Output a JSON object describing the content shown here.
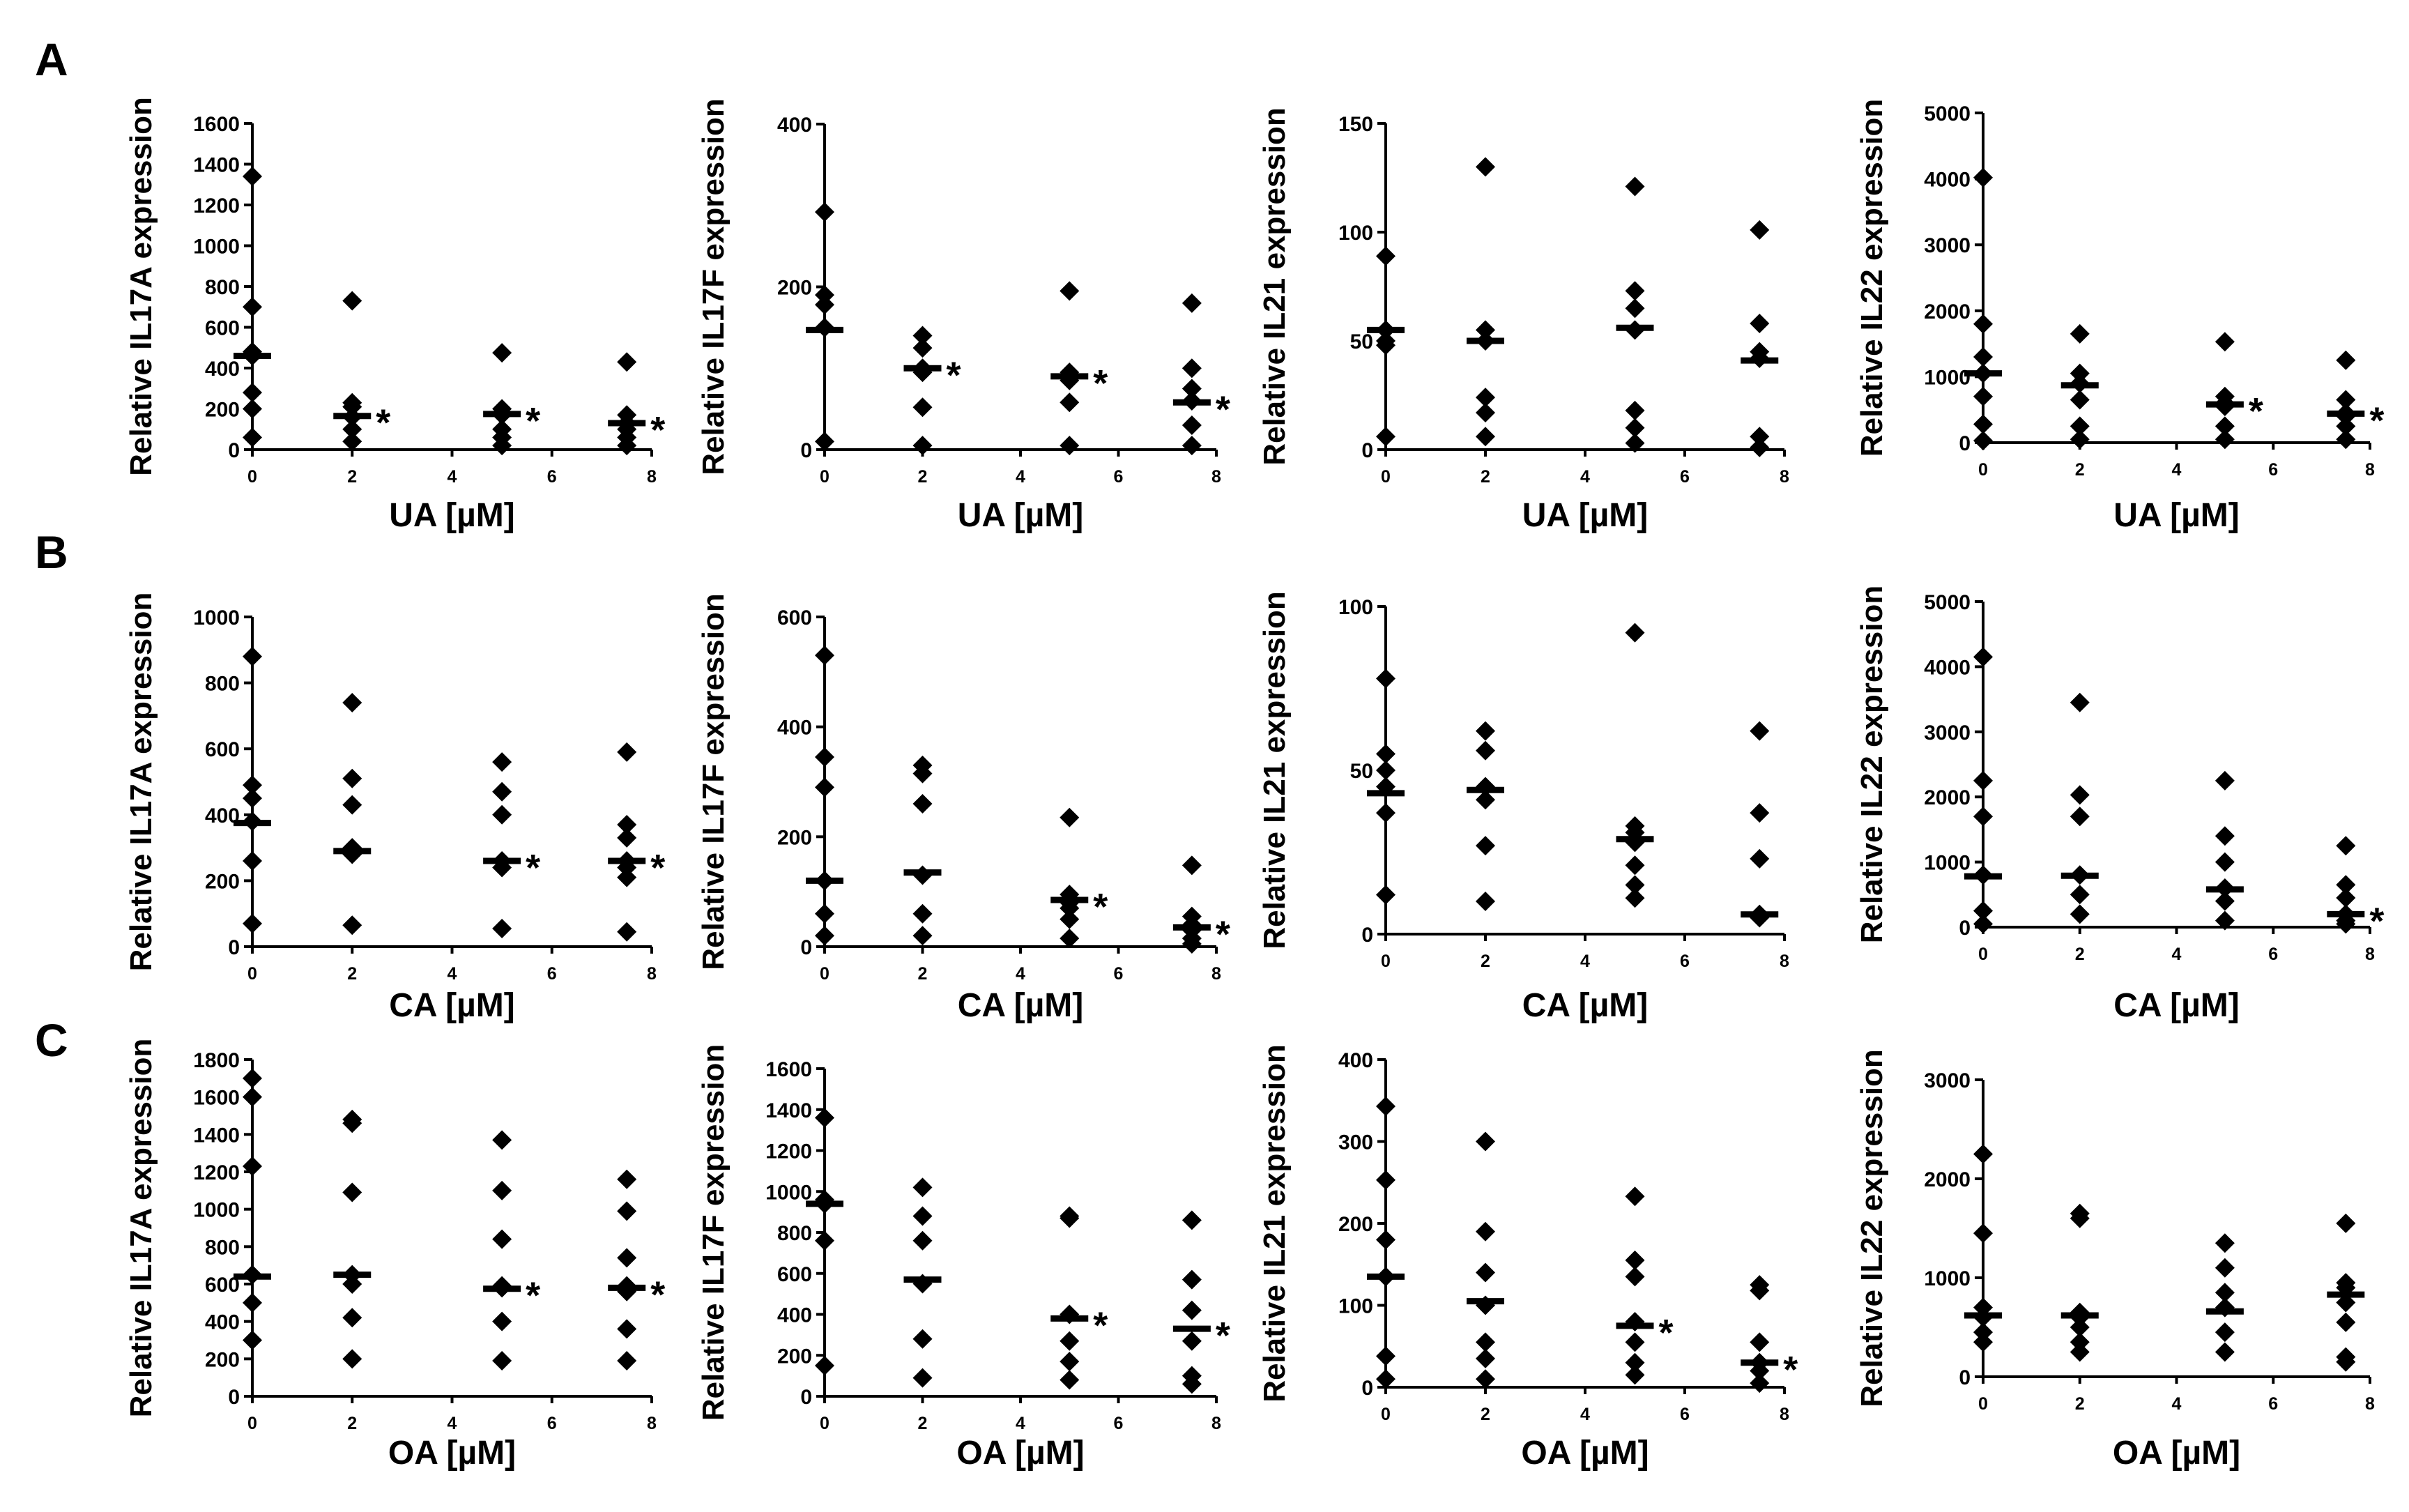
{
  "panel_letters": [
    "A",
    "B",
    "C"
  ],
  "chart_data": [
    {
      "id": "A-IL17A",
      "type": "scatter",
      "panel": "A",
      "title": "",
      "ylabel": "Relative IL17A expression",
      "xlabel": "UA [µM]",
      "ylim": [
        0,
        1600
      ],
      "yticks": [
        0,
        200,
        400,
        600,
        800,
        1000,
        1200,
        1400,
        1600
      ],
      "xlim": [
        0,
        8
      ],
      "xticks": [
        0,
        2,
        4,
        6,
        8
      ],
      "groups": [
        {
          "x": 0,
          "points": [
            1340,
            700,
            480,
            460,
            280,
            200,
            60
          ],
          "median": 460,
          "star": false
        },
        {
          "x": 2,
          "points": [
            730,
            230,
            210,
            160,
            100,
            40
          ],
          "median": 165,
          "star": true
        },
        {
          "x": 5,
          "points": [
            475,
            200,
            170,
            100,
            60,
            20
          ],
          "median": 175,
          "star": true
        },
        {
          "x": 7.5,
          "points": [
            430,
            170,
            130,
            100,
            60,
            20
          ],
          "median": 130,
          "star": true
        }
      ]
    },
    {
      "id": "A-IL17F",
      "type": "scatter",
      "panel": "A",
      "title": "",
      "ylabel": "Relative IL17F expression",
      "xlabel": "UA [µM]",
      "ylim": [
        0,
        400
      ],
      "yticks": [
        0,
        200,
        400
      ],
      "xlim": [
        0,
        8
      ],
      "xticks": [
        0,
        2,
        4,
        6,
        8
      ],
      "groups": [
        {
          "x": 0,
          "points": [
            292,
            190,
            178,
            150,
            10
          ],
          "median": 147,
          "star": false
        },
        {
          "x": 2,
          "points": [
            140,
            125,
            100,
            95,
            52,
            5
          ],
          "median": 100,
          "star": true
        },
        {
          "x": 5,
          "points": [
            195,
            95,
            90,
            85,
            58,
            5
          ],
          "median": 90,
          "star": true
        },
        {
          "x": 7.5,
          "points": [
            180,
            100,
            75,
            60,
            30,
            5
          ],
          "median": 58,
          "star": true
        }
      ]
    },
    {
      "id": "A-IL21",
      "type": "scatter",
      "panel": "A",
      "title": "",
      "ylabel": "Relative IL21 expression",
      "xlabel": "UA [µM]",
      "ylim": [
        0,
        150
      ],
      "yticks": [
        0,
        50,
        100,
        150
      ],
      "xlim": [
        0,
        8
      ],
      "xticks": [
        0,
        2,
        4,
        6,
        8
      ],
      "groups": [
        {
          "x": 0,
          "points": [
            89,
            55,
            50,
            48,
            6
          ],
          "median": 55,
          "star": false
        },
        {
          "x": 2,
          "points": [
            130,
            55,
            50,
            24,
            17,
            6
          ],
          "median": 50,
          "star": false
        },
        {
          "x": 5,
          "points": [
            121,
            73,
            65,
            55,
            18,
            10,
            3
          ],
          "median": 56,
          "star": false
        },
        {
          "x": 7.5,
          "points": [
            101,
            58,
            45,
            42,
            6,
            1
          ],
          "median": 41,
          "star": false
        }
      ]
    },
    {
      "id": "A-IL22",
      "type": "scatter",
      "panel": "A",
      "title": "",
      "ylabel": "Relative IL22 expression",
      "xlabel": "UA [µM]",
      "ylim": [
        0,
        5000
      ],
      "yticks": [
        0,
        1000,
        2000,
        3000,
        4000,
        5000
      ],
      "xlim": [
        0,
        8
      ],
      "xticks": [
        0,
        2,
        4,
        6,
        8
      ],
      "groups": [
        {
          "x": 0,
          "points": [
            4020,
            1800,
            1300,
            1050,
            700,
            280,
            30
          ],
          "median": 1050,
          "star": false
        },
        {
          "x": 2,
          "points": [
            1650,
            1050,
            900,
            650,
            250,
            50
          ],
          "median": 870,
          "star": false
        },
        {
          "x": 5,
          "points": [
            1530,
            700,
            600,
            550,
            250,
            50
          ],
          "median": 580,
          "star": true
        },
        {
          "x": 7.5,
          "points": [
            1250,
            650,
            450,
            400,
            250,
            50
          ],
          "median": 440,
          "star": true
        }
      ]
    },
    {
      "id": "B-IL17A",
      "type": "scatter",
      "panel": "B",
      "title": "",
      "ylabel": "Relative IL17A expression",
      "xlabel": "CA [µM]",
      "ylim": [
        0,
        1000
      ],
      "yticks": [
        0,
        200,
        400,
        600,
        800,
        1000
      ],
      "xlim": [
        0,
        8
      ],
      "xticks": [
        0,
        2,
        4,
        6,
        8
      ],
      "groups": [
        {
          "x": 0,
          "points": [
            880,
            490,
            450,
            380,
            260,
            70
          ],
          "median": 375,
          "star": false
        },
        {
          "x": 2,
          "points": [
            740,
            510,
            430,
            300,
            280,
            65
          ],
          "median": 290,
          "star": false
        },
        {
          "x": 5,
          "points": [
            560,
            470,
            400,
            260,
            240,
            55
          ],
          "median": 260,
          "star": true
        },
        {
          "x": 7.5,
          "points": [
            590,
            370,
            330,
            260,
            240,
            210,
            45
          ],
          "median": 260,
          "star": true
        }
      ]
    },
    {
      "id": "B-IL17F",
      "type": "scatter",
      "panel": "B",
      "title": "",
      "ylabel": "Relative IL17F expression",
      "xlabel": "CA [µM]",
      "ylim": [
        0,
        600
      ],
      "yticks": [
        0,
        200,
        400,
        600
      ],
      "xlim": [
        0,
        8
      ],
      "xticks": [
        0,
        2,
        4,
        6,
        8
      ],
      "groups": [
        {
          "x": 0,
          "points": [
            530,
            345,
            290,
            120,
            60,
            20
          ],
          "median": 120,
          "star": false
        },
        {
          "x": 2,
          "points": [
            330,
            315,
            260,
            130,
            60,
            20
          ],
          "median": 135,
          "star": false
        },
        {
          "x": 5,
          "points": [
            235,
            95,
            80,
            70,
            50,
            15
          ],
          "median": 85,
          "star": true
        },
        {
          "x": 7.5,
          "points": [
            148,
            55,
            40,
            30,
            15,
            5
          ],
          "median": 35,
          "star": true
        }
      ]
    },
    {
      "id": "B-IL21",
      "type": "scatter",
      "panel": "B",
      "title": "",
      "ylabel": "Relative IL21 expression",
      "xlabel": "CA [µM]",
      "ylim": [
        0,
        100
      ],
      "yticks": [
        0,
        50,
        100
      ],
      "xlim": [
        0,
        8
      ],
      "xticks": [
        0,
        2,
        4,
        6,
        8
      ],
      "groups": [
        {
          "x": 0,
          "points": [
            78,
            55,
            50,
            45,
            37,
            12
          ],
          "median": 43,
          "star": false
        },
        {
          "x": 2,
          "points": [
            62,
            56,
            45,
            41,
            27,
            10
          ],
          "median": 44,
          "star": false
        },
        {
          "x": 5,
          "points": [
            92,
            33,
            31,
            28,
            21,
            15,
            11
          ],
          "median": 29,
          "star": false
        },
        {
          "x": 7.5,
          "points": [
            62,
            37,
            23,
            6,
            5
          ],
          "median": 6,
          "star": false
        }
      ]
    },
    {
      "id": "B-IL22",
      "type": "scatter",
      "panel": "B",
      "title": "",
      "ylabel": "Relative IL22 expression",
      "xlabel": "CA [µM]",
      "ylim": [
        0,
        5000
      ],
      "yticks": [
        0,
        1000,
        2000,
        3000,
        4000,
        5000
      ],
      "xlim": [
        0,
        8
      ],
      "xticks": [
        0,
        2,
        4,
        6,
        8
      ],
      "groups": [
        {
          "x": 0,
          "points": [
            4150,
            2250,
            1700,
            800,
            250,
            50
          ],
          "median": 780,
          "star": false
        },
        {
          "x": 2,
          "points": [
            3450,
            2030,
            1700,
            800,
            500,
            200
          ],
          "median": 790,
          "star": false
        },
        {
          "x": 5,
          "points": [
            2250,
            1400,
            1000,
            600,
            400,
            100
          ],
          "median": 580,
          "star": false
        },
        {
          "x": 7.5,
          "points": [
            1250,
            650,
            450,
            200,
            100,
            50
          ],
          "median": 200,
          "star": true
        }
      ]
    },
    {
      "id": "C-IL17A",
      "type": "scatter",
      "panel": "C",
      "title": "",
      "ylabel": "Relative IL17A expression",
      "xlabel": "OA [µM]",
      "ylim": [
        0,
        1800
      ],
      "yticks": [
        0,
        200,
        400,
        600,
        800,
        1000,
        1200,
        1400,
        1600,
        1800
      ],
      "xlim": [
        0,
        8
      ],
      "xticks": [
        0,
        2,
        4,
        6,
        8
      ],
      "groups": [
        {
          "x": 0,
          "points": [
            1700,
            1600,
            1230,
            650,
            500,
            300
          ],
          "median": 640,
          "star": false
        },
        {
          "x": 2,
          "points": [
            1480,
            1460,
            1090,
            650,
            600,
            420,
            200
          ],
          "median": 650,
          "star": false
        },
        {
          "x": 5,
          "points": [
            1370,
            1100,
            840,
            580,
            590,
            400,
            190
          ],
          "median": 575,
          "star": true
        },
        {
          "x": 7.5,
          "points": [
            1160,
            990,
            740,
            560,
            590,
            360,
            190
          ],
          "median": 580,
          "star": true
        }
      ]
    },
    {
      "id": "C-IL17F",
      "type": "scatter",
      "panel": "C",
      "title": "",
      "ylabel": "Relative IL17F expression",
      "xlabel": "OA [µM]",
      "ylim": [
        0,
        1600
      ],
      "yticks": [
        0,
        200,
        400,
        600,
        800,
        1000,
        1200,
        1400,
        1600
      ],
      "xlim": [
        0,
        8
      ],
      "xticks": [
        0,
        2,
        4,
        6,
        8
      ],
      "groups": [
        {
          "x": 0,
          "points": [
            1360,
            960,
            940,
            760,
            150
          ],
          "median": 940,
          "star": false
        },
        {
          "x": 2,
          "points": [
            1020,
            880,
            760,
            550,
            280,
            90
          ],
          "median": 570,
          "star": false
        },
        {
          "x": 5,
          "points": [
            880,
            870,
            400,
            270,
            170,
            80
          ],
          "median": 380,
          "star": true
        },
        {
          "x": 7.5,
          "points": [
            860,
            570,
            420,
            270,
            100,
            60
          ],
          "median": 330,
          "star": true
        }
      ]
    },
    {
      "id": "C-IL21",
      "type": "scatter",
      "panel": "C",
      "title": "",
      "ylabel": "Relative IL21 expression",
      "xlabel": "OA [µM]",
      "ylim": [
        0,
        400
      ],
      "yticks": [
        0,
        100,
        200,
        300,
        400
      ],
      "xlim": [
        0,
        8
      ],
      "xticks": [
        0,
        2,
        4,
        6,
        8
      ],
      "groups": [
        {
          "x": 0,
          "points": [
            343,
            253,
            180,
            135,
            38,
            10
          ],
          "median": 135,
          "star": false
        },
        {
          "x": 2,
          "points": [
            300,
            190,
            140,
            100,
            55,
            35,
            10
          ],
          "median": 105,
          "star": false
        },
        {
          "x": 5,
          "points": [
            233,
            155,
            135,
            80,
            55,
            30,
            15
          ],
          "median": 75,
          "star": true
        },
        {
          "x": 7.5,
          "points": [
            125,
            118,
            55,
            30,
            20,
            5
          ],
          "median": 30,
          "star": true
        }
      ]
    },
    {
      "id": "C-IL22",
      "type": "scatter",
      "panel": "C",
      "title": "",
      "ylabel": "Relative IL22 expression",
      "xlabel": "OA [µM]",
      "ylim": [
        0,
        3000
      ],
      "yticks": [
        0,
        1000,
        2000,
        3000
      ],
      "xlim": [
        0,
        8
      ],
      "xticks": [
        0,
        2,
        4,
        6,
        8
      ],
      "groups": [
        {
          "x": 0,
          "points": [
            2250,
            1450,
            700,
            600,
            450,
            350
          ],
          "median": 620,
          "star": false
        },
        {
          "x": 2,
          "points": [
            1650,
            1600,
            650,
            600,
            500,
            350,
            250
          ],
          "median": 620,
          "star": false
        },
        {
          "x": 5,
          "points": [
            1350,
            1100,
            850,
            700,
            450,
            250
          ],
          "median": 660,
          "star": false
        },
        {
          "x": 7.5,
          "points": [
            1550,
            950,
            900,
            750,
            550,
            200,
            150
          ],
          "median": 830,
          "star": false
        }
      ]
    }
  ]
}
